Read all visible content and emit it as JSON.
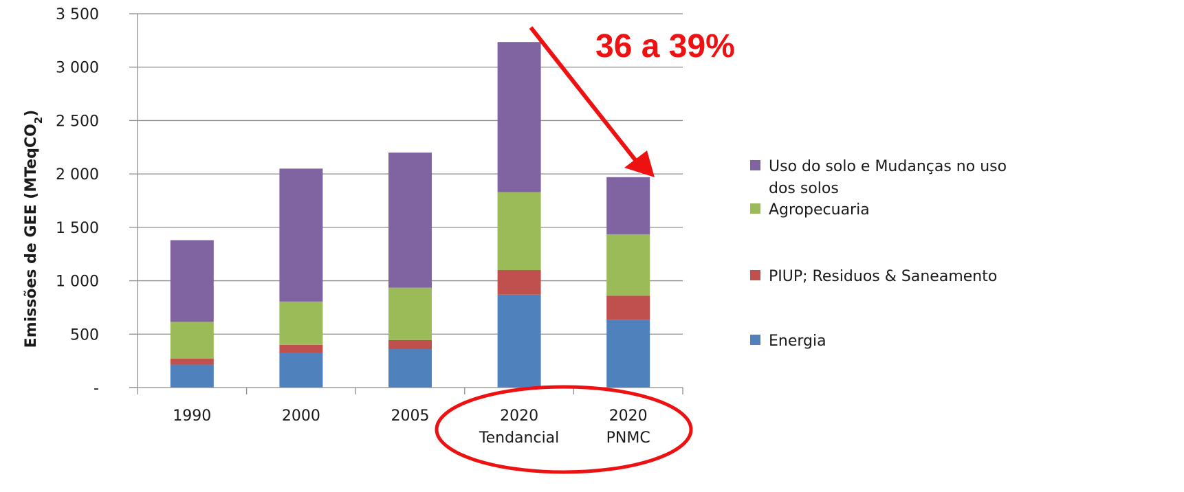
{
  "chart_data": {
    "type": "bar",
    "stacked": true,
    "ylabel": "Emissões de GEE (MTeqCO",
    "ylabel_subscript": "2",
    "ylabel_suffix": ")",
    "ylim": [
      0,
      3500
    ],
    "yticks": [
      0,
      500,
      1000,
      1500,
      2000,
      2500,
      3000,
      3500
    ],
    "ytick_labels": [
      "-",
      "500",
      "1 000",
      "1 500",
      "2 000",
      "2 500",
      "3 000",
      "3 500"
    ],
    "grid": true,
    "legend_position": "right",
    "categories": [
      [
        "1990"
      ],
      [
        "2000"
      ],
      [
        "2005"
      ],
      [
        "2020",
        "Tendancial"
      ],
      [
        "2020",
        "PNMC"
      ]
    ],
    "series": [
      {
        "name": "Energia",
        "color": "#4f81bd",
        "values": [
          215,
          325,
          360,
          870,
          635
        ]
      },
      {
        "name": "PIUP; Residuos & Saneamento",
        "color": "#c0504d",
        "values": [
          55,
          75,
          85,
          230,
          225
        ]
      },
      {
        "name": "Agropecuaria",
        "color": "#9bbb59",
        "values": [
          345,
          405,
          490,
          730,
          575
        ]
      },
      {
        "name": "Uso do solo e Mudanças no uso dos solos",
        "color": "#8064a2",
        "values": [
          765,
          1245,
          1265,
          1405,
          535
        ]
      }
    ],
    "legend_entries": [
      {
        "lines": [
          "Uso do solo e Mudanças no uso",
          "dos solos"
        ],
        "color": "#8064a2"
      },
      {
        "lines": [
          "Agropecuaria"
        ],
        "color": "#9bbb59"
      },
      {
        "lines": [
          "PIUP; Residuos & Saneamento"
        ],
        "color": "#c0504d"
      },
      {
        "lines": [
          "Energia"
        ],
        "color": "#4f81bd"
      }
    ],
    "annotation": {
      "text": "36 a 39%",
      "color": "#ee1111"
    }
  }
}
